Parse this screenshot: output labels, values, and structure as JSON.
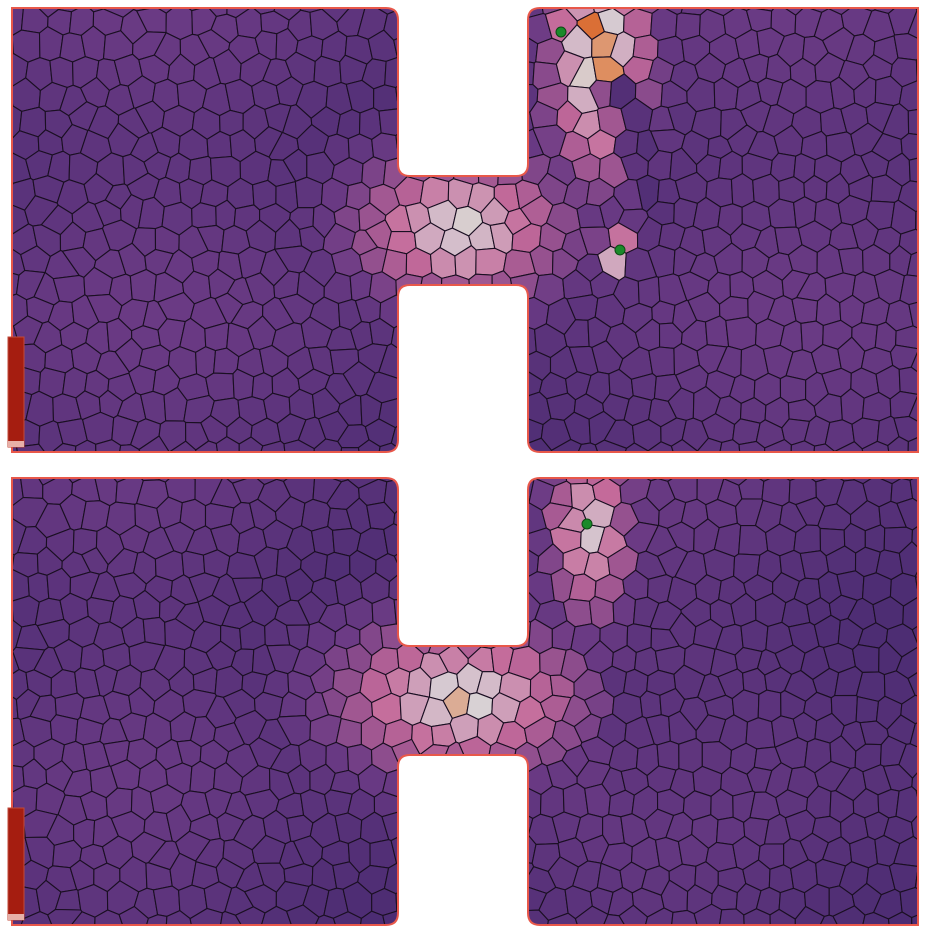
{
  "figure": {
    "panels": [
      {
        "id": "top",
        "description_hidden": false,
        "colormap": {
          "low": "#3a2468",
          "mid": "#c46a9a",
          "high": "#d8d2d6",
          "hot": "#e0783a",
          "max": "#a51d10"
        },
        "hotspots": [
          {
            "name": "green-marker-top-left",
            "color": "#1a8a2a"
          },
          {
            "name": "green-marker-neck",
            "color": "#1a8a2a"
          }
        ]
      },
      {
        "id": "bottom",
        "description_hidden": false,
        "colormap": {
          "low": "#3a2468",
          "mid": "#c46a9a",
          "high": "#d8d2d6",
          "hot": "#e0783a",
          "max": "#a51d10"
        },
        "hotspots": [
          {
            "name": "green-marker-top",
            "color": "#1a8a2a"
          }
        ]
      }
    ],
    "boundary_color": "#e8584a",
    "background": "#ffffff",
    "colorbar_color": "#a51d10"
  }
}
